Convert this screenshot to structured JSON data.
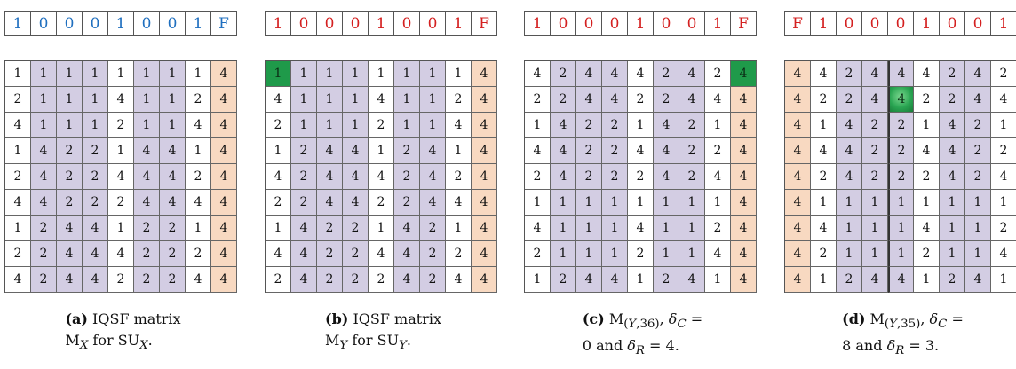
{
  "panels": [
    {
      "vector": [
        "1",
        "0",
        "0",
        "0",
        "1",
        "0",
        "0",
        "1",
        "F"
      ],
      "vector_color": "#1f6fbf",
      "matrix": [
        [
          "1",
          "1",
          "1",
          "1",
          "1",
          "1",
          "1",
          "1",
          "4"
        ],
        [
          "2",
          "1",
          "1",
          "1",
          "4",
          "1",
          "1",
          "2",
          "4"
        ],
        [
          "4",
          "1",
          "1",
          "1",
          "2",
          "1",
          "1",
          "4",
          "4"
        ],
        [
          "1",
          "4",
          "2",
          "2",
          "1",
          "4",
          "4",
          "1",
          "4"
        ],
        [
          "2",
          "4",
          "2",
          "2",
          "4",
          "4",
          "4",
          "2",
          "4"
        ],
        [
          "4",
          "4",
          "2",
          "2",
          "2",
          "4",
          "4",
          "4",
          "4"
        ],
        [
          "1",
          "2",
          "4",
          "4",
          "1",
          "2",
          "2",
          "1",
          "4"
        ],
        [
          "2",
          "2",
          "4",
          "4",
          "4",
          "2",
          "2",
          "2",
          "4"
        ],
        [
          "4",
          "2",
          "4",
          "4",
          "2",
          "2",
          "2",
          "4",
          "4"
        ]
      ],
      "fill": [
        [
          "w",
          "p",
          "p",
          "p",
          "w",
          "p",
          "p",
          "w",
          "o"
        ],
        [
          "w",
          "p",
          "p",
          "p",
          "w",
          "p",
          "p",
          "w",
          "o"
        ],
        [
          "w",
          "p",
          "p",
          "p",
          "w",
          "p",
          "p",
          "w",
          "o"
        ],
        [
          "w",
          "p",
          "p",
          "p",
          "w",
          "p",
          "p",
          "w",
          "o"
        ],
        [
          "w",
          "p",
          "p",
          "p",
          "w",
          "p",
          "p",
          "w",
          "o"
        ],
        [
          "w",
          "p",
          "p",
          "p",
          "w",
          "p",
          "p",
          "w",
          "o"
        ],
        [
          "w",
          "p",
          "p",
          "p",
          "w",
          "p",
          "p",
          "w",
          "o"
        ],
        [
          "w",
          "p",
          "p",
          "p",
          "w",
          "p",
          "p",
          "w",
          "o"
        ],
        [
          "w",
          "p",
          "p",
          "p",
          "w",
          "p",
          "p",
          "w",
          "o"
        ]
      ],
      "caption_label": "(a)",
      "caption_line1": " IQSF  matrix",
      "caption_line2_html": "M<sub><i>X</i></sub> for SU<sub><i>X</i></sub>."
    },
    {
      "vector": [
        "1",
        "0",
        "0",
        "0",
        "1",
        "0",
        "0",
        "1",
        "F"
      ],
      "vector_color": "#d42020",
      "matrix": [
        [
          "1",
          "1",
          "1",
          "1",
          "1",
          "1",
          "1",
          "1",
          "4"
        ],
        [
          "4",
          "1",
          "1",
          "1",
          "4",
          "1",
          "1",
          "2",
          "4"
        ],
        [
          "2",
          "1",
          "1",
          "1",
          "2",
          "1",
          "1",
          "4",
          "4"
        ],
        [
          "1",
          "2",
          "4",
          "4",
          "1",
          "2",
          "4",
          "1",
          "4"
        ],
        [
          "4",
          "2",
          "4",
          "4",
          "4",
          "2",
          "4",
          "2",
          "4"
        ],
        [
          "2",
          "2",
          "4",
          "4",
          "2",
          "2",
          "4",
          "4",
          "4"
        ],
        [
          "1",
          "4",
          "2",
          "2",
          "1",
          "4",
          "2",
          "1",
          "4"
        ],
        [
          "4",
          "4",
          "2",
          "2",
          "4",
          "4",
          "2",
          "2",
          "4"
        ],
        [
          "2",
          "4",
          "2",
          "2",
          "2",
          "4",
          "2",
          "4",
          "4"
        ]
      ],
      "fill": [
        [
          "g",
          "p",
          "p",
          "p",
          "w",
          "p",
          "p",
          "w",
          "o"
        ],
        [
          "w",
          "p",
          "p",
          "p",
          "w",
          "p",
          "p",
          "w",
          "o"
        ],
        [
          "w",
          "p",
          "p",
          "p",
          "w",
          "p",
          "p",
          "w",
          "o"
        ],
        [
          "w",
          "p",
          "p",
          "p",
          "w",
          "p",
          "p",
          "w",
          "o"
        ],
        [
          "w",
          "p",
          "p",
          "p",
          "w",
          "p",
          "p",
          "w",
          "o"
        ],
        [
          "w",
          "p",
          "p",
          "p",
          "w",
          "p",
          "p",
          "w",
          "o"
        ],
        [
          "w",
          "p",
          "p",
          "p",
          "w",
          "p",
          "p",
          "w",
          "o"
        ],
        [
          "w",
          "p",
          "p",
          "p",
          "w",
          "p",
          "p",
          "w",
          "o"
        ],
        [
          "w",
          "p",
          "p",
          "p",
          "w",
          "p",
          "p",
          "w",
          "o"
        ]
      ],
      "caption_label": "(b)",
      "caption_line1": " IQSF  matrix",
      "caption_line2_html": "M<sub><i>Y</i></sub> for SU<sub><i>Y</i></sub>."
    },
    {
      "vector": [
        "1",
        "0",
        "0",
        "0",
        "1",
        "0",
        "0",
        "1",
        "F"
      ],
      "vector_color": "#d42020",
      "matrix": [
        [
          "4",
          "2",
          "4",
          "4",
          "4",
          "2",
          "4",
          "2",
          "4"
        ],
        [
          "2",
          "2",
          "4",
          "4",
          "2",
          "2",
          "4",
          "4",
          "4"
        ],
        [
          "1",
          "4",
          "2",
          "2",
          "1",
          "4",
          "2",
          "1",
          "4"
        ],
        [
          "4",
          "4",
          "2",
          "2",
          "4",
          "4",
          "2",
          "2",
          "4"
        ],
        [
          "2",
          "4",
          "2",
          "2",
          "2",
          "4",
          "2",
          "4",
          "4"
        ],
        [
          "1",
          "1",
          "1",
          "1",
          "1",
          "1",
          "1",
          "1",
          "4"
        ],
        [
          "4",
          "1",
          "1",
          "1",
          "4",
          "1",
          "1",
          "2",
          "4"
        ],
        [
          "2",
          "1",
          "1",
          "1",
          "2",
          "1",
          "1",
          "4",
          "4"
        ],
        [
          "1",
          "2",
          "4",
          "4",
          "1",
          "2",
          "4",
          "1",
          "4"
        ]
      ],
      "fill": [
        [
          "w",
          "p",
          "p",
          "p",
          "w",
          "p",
          "p",
          "w",
          "g"
        ],
        [
          "w",
          "p",
          "p",
          "p",
          "w",
          "p",
          "p",
          "w",
          "o"
        ],
        [
          "w",
          "p",
          "p",
          "p",
          "w",
          "p",
          "p",
          "w",
          "o"
        ],
        [
          "w",
          "p",
          "p",
          "p",
          "w",
          "p",
          "p",
          "w",
          "o"
        ],
        [
          "w",
          "p",
          "p",
          "p",
          "w",
          "p",
          "p",
          "w",
          "o"
        ],
        [
          "w",
          "p",
          "p",
          "p",
          "w",
          "p",
          "p",
          "w",
          "o"
        ],
        [
          "w",
          "p",
          "p",
          "p",
          "w",
          "p",
          "p",
          "w",
          "o"
        ],
        [
          "w",
          "p",
          "p",
          "p",
          "w",
          "p",
          "p",
          "w",
          "o"
        ],
        [
          "w",
          "p",
          "p",
          "p",
          "w",
          "p",
          "p",
          "w",
          "o"
        ]
      ],
      "caption_label": "(c)",
      "caption_line1": " M<sub>(<i>Y</i>,36)</sub>, <i>δ<sub>C</sub></i> =",
      "caption_line2_html": "0 and <i>δ<sub>R</sub></i> = 4."
    },
    {
      "vector": [
        "F",
        "1",
        "0",
        "0",
        "0",
        "1",
        "0",
        "0",
        "1"
      ],
      "vector_color": "#d42020",
      "matrix": [
        [
          "4",
          "4",
          "2",
          "4",
          "4",
          "4",
          "2",
          "4",
          "2"
        ],
        [
          "4",
          "2",
          "2",
          "4",
          "4",
          "2",
          "2",
          "4",
          "4"
        ],
        [
          "4",
          "1",
          "4",
          "2",
          "2",
          "1",
          "4",
          "2",
          "1"
        ],
        [
          "4",
          "4",
          "4",
          "2",
          "2",
          "4",
          "4",
          "2",
          "2"
        ],
        [
          "4",
          "2",
          "4",
          "2",
          "2",
          "2",
          "4",
          "2",
          "4"
        ],
        [
          "4",
          "1",
          "1",
          "1",
          "1",
          "1",
          "1",
          "1",
          "1"
        ],
        [
          "4",
          "4",
          "1",
          "1",
          "1",
          "4",
          "1",
          "1",
          "2"
        ],
        [
          "4",
          "2",
          "1",
          "1",
          "1",
          "2",
          "1",
          "1",
          "4"
        ],
        [
          "4",
          "1",
          "2",
          "4",
          "4",
          "1",
          "2",
          "4",
          "1"
        ]
      ],
      "fill": [
        [
          "o",
          "w",
          "p",
          "p",
          "p",
          "w",
          "p",
          "p",
          "w"
        ],
        [
          "o",
          "w",
          "p",
          "p",
          "gg",
          "w",
          "p",
          "p",
          "w"
        ],
        [
          "o",
          "w",
          "p",
          "p",
          "p",
          "w",
          "p",
          "p",
          "w"
        ],
        [
          "o",
          "w",
          "p",
          "p",
          "p",
          "w",
          "p",
          "p",
          "w"
        ],
        [
          "o",
          "w",
          "p",
          "p",
          "p",
          "w",
          "p",
          "p",
          "w"
        ],
        [
          "o",
          "w",
          "p",
          "p",
          "p",
          "w",
          "p",
          "p",
          "w"
        ],
        [
          "o",
          "w",
          "p",
          "p",
          "p",
          "w",
          "p",
          "p",
          "w"
        ],
        [
          "o",
          "w",
          "p",
          "p",
          "p",
          "w",
          "p",
          "p",
          "w"
        ],
        [
          "o",
          "w",
          "p",
          "p",
          "p",
          "w",
          "p",
          "p",
          "w"
        ]
      ],
      "thick_left_col": 4,
      "caption_label": "(d)",
      "caption_line1": " M<sub>(<i>Y</i>,35)</sub>, <i>δ<sub>C</sub></i> =",
      "caption_line2_html": "8 and <i>δ<sub>R</sub></i> = 3."
    }
  ],
  "colors": {
    "purple": "#d3cde3",
    "orange": "#f8d9c1",
    "green": "#1f9a4a",
    "blue": "#1f6fbf",
    "red": "#d42020"
  }
}
